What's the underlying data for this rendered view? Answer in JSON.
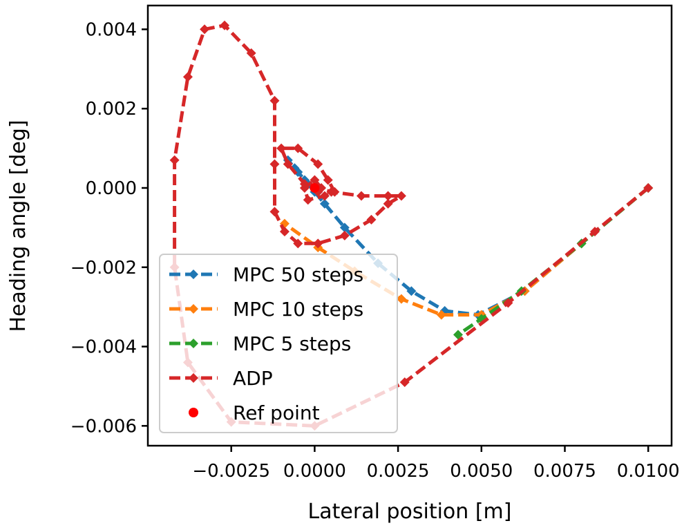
{
  "chart_data": {
    "type": "line",
    "xlabel": "Lateral position [m]",
    "ylabel": "Heading angle [deg]",
    "xlim": [
      -0.005,
      0.0107
    ],
    "ylim": [
      -0.0065,
      0.0046
    ],
    "x_ticks": [
      -0.0025,
      0.0,
      0.0025,
      0.005,
      0.0075,
      0.01
    ],
    "x_tick_labels": [
      "−0.0025",
      "0.0000",
      "0.0025",
      "0.0050",
      "0.0075",
      "0.0100"
    ],
    "y_ticks": [
      0.004,
      0.002,
      0.0,
      -0.002,
      -0.004,
      -0.006
    ],
    "y_tick_labels": [
      "0.004",
      "0.002",
      "0.000",
      "−0.002",
      "−0.004",
      "−0.006"
    ],
    "grid": false,
    "legend_position": "lower-left",
    "series": [
      {
        "name": "MPC 50 steps",
        "color": "#1f77b4",
        "marker": "diamond",
        "line": "dashed",
        "x": [
          0.01,
          0.008,
          0.0063,
          0.0049,
          0.0039,
          0.0029,
          0.0019,
          0.0009,
          0.0003,
          0.0,
          -0.0003,
          -0.0006,
          -0.0008,
          -0.0005,
          -0.0002,
          0.0,
          0.0001
        ],
        "y": [
          0.0,
          -0.0014,
          -0.0026,
          -0.0032,
          -0.0031,
          -0.0026,
          -0.0019,
          -0.001,
          -0.0004,
          -0.0001,
          0.0002,
          0.0005,
          0.0007,
          0.0004,
          0.0001,
          0.0,
          -0.0001
        ]
      },
      {
        "name": "MPC 10 steps",
        "color": "#ff7f0e",
        "marker": "diamond",
        "line": "dashed",
        "x": [
          0.01,
          0.008,
          0.0063,
          0.005,
          0.0038,
          0.0026,
          0.0012,
          0.0001,
          -0.0009
        ],
        "y": [
          0.0,
          -0.0014,
          -0.0026,
          -0.0032,
          -0.0032,
          -0.0028,
          -0.0021,
          -0.0015,
          -0.0009
        ]
      },
      {
        "name": "MPC 5 steps",
        "color": "#2ca02c",
        "marker": "diamond",
        "line": "dashed",
        "x": [
          0.01,
          0.008,
          0.0062,
          0.005,
          0.0043
        ],
        "y": [
          0.0,
          -0.0014,
          -0.0026,
          -0.0033,
          -0.0037
        ]
      },
      {
        "name": "ADP",
        "color": "#d62728",
        "marker": "diamond",
        "line": "dashed",
        "x": [
          0.01,
          0.0084,
          0.0058,
          0.0027,
          0.0,
          -0.0025,
          -0.0038,
          -0.0042,
          -0.0042,
          -0.0038,
          -0.0033,
          -0.0027,
          -0.0019,
          -0.0012,
          -0.0012,
          -0.0012,
          -0.0009,
          -0.0005,
          0.0001,
          0.0009,
          0.0017,
          0.0022,
          0.0026,
          0.0022,
          0.0014,
          0.0005,
          0.0001,
          -0.0003,
          -0.0008,
          -0.001,
          -0.0005,
          0.0001,
          0.0004,
          0.0006,
          0.0003,
          -0.0002,
          -0.0003,
          0.0,
          0.0002,
          0.0001
        ],
        "y": [
          0.0,
          -0.0011,
          -0.0029,
          -0.0049,
          -0.006,
          -0.0059,
          -0.0044,
          -0.002,
          0.0007,
          0.0028,
          0.004,
          0.0041,
          0.0034,
          0.0022,
          0.0006,
          -0.0006,
          -0.0011,
          -0.0014,
          -0.0014,
          -0.0012,
          -0.0008,
          -0.0004,
          -0.0002,
          -0.0002,
          -0.0002,
          -0.0001,
          0.0,
          0.0001,
          0.0006,
          0.001,
          0.001,
          0.0006,
          0.0002,
          -0.0001,
          -0.0002,
          -0.0003,
          0.0,
          0.0002,
          0.0,
          -0.0001
        ]
      }
    ],
    "ref_point": {
      "name": "Ref point",
      "color": "#ff0000",
      "x": 0.0,
      "y": 0.0
    }
  }
}
